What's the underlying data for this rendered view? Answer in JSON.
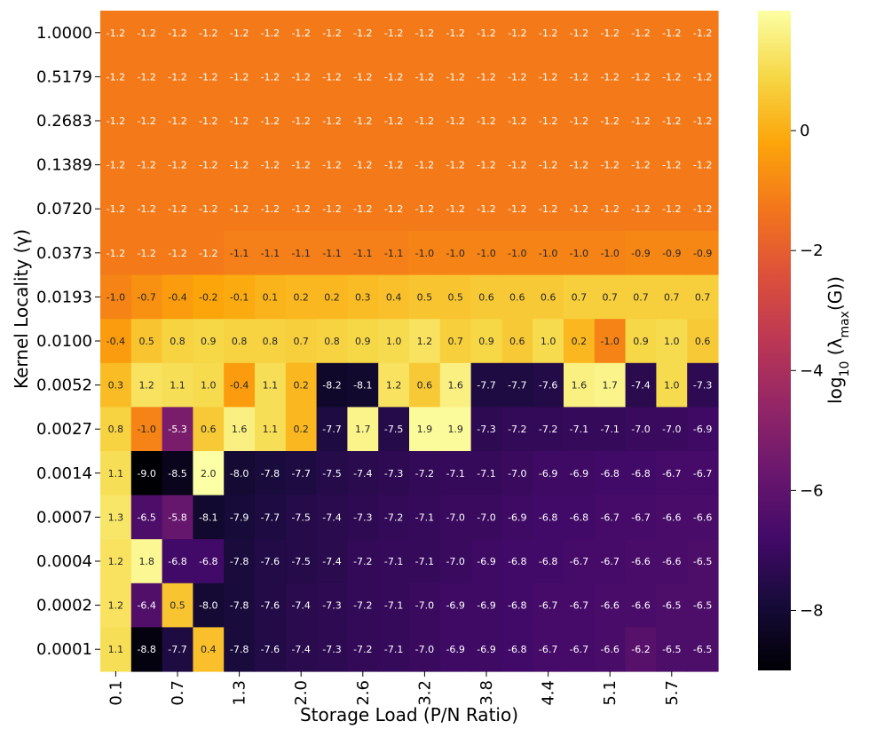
{
  "chart_data": {
    "type": "heatmap",
    "xlabel": "Storage Load (P/N Ratio)",
    "ylabel": "Kernel Locality (γ)",
    "colorbar_label": "log10 (λmax(G))",
    "colorbar_ticks": [
      0,
      -2,
      -4,
      -6,
      -8
    ],
    "colorbar_tick_labels": [
      "0",
      "−2",
      "−4",
      "−6",
      "−8"
    ],
    "color_range": [
      -9.0,
      2.0
    ],
    "colormap": "inferno",
    "x_tick_labels": [
      "0.1",
      "0.7",
      "1.3",
      "2.0",
      "2.6",
      "3.2",
      "3.8",
      "4.4",
      "5.1",
      "5.7"
    ],
    "x_tick_columns": [
      0,
      2,
      4,
      6,
      8,
      10,
      12,
      14,
      16,
      18
    ],
    "y_labels": [
      "1.0000",
      "0.5179",
      "0.2683",
      "0.1389",
      "0.0720",
      "0.0373",
      "0.0193",
      "0.0100",
      "0.0052",
      "0.0027",
      "0.0014",
      "0.0007",
      "0.0004",
      "0.0002",
      "0.0001"
    ],
    "values": [
      [
        -1.2,
        -1.2,
        -1.2,
        -1.2,
        -1.2,
        -1.2,
        -1.2,
        -1.2,
        -1.2,
        -1.2,
        -1.2,
        -1.2,
        -1.2,
        -1.2,
        -1.2,
        -1.2,
        -1.2,
        -1.2,
        -1.2,
        -1.2
      ],
      [
        -1.2,
        -1.2,
        -1.2,
        -1.2,
        -1.2,
        -1.2,
        -1.2,
        -1.2,
        -1.2,
        -1.2,
        -1.2,
        -1.2,
        -1.2,
        -1.2,
        -1.2,
        -1.2,
        -1.2,
        -1.2,
        -1.2,
        -1.2
      ],
      [
        -1.2,
        -1.2,
        -1.2,
        -1.2,
        -1.2,
        -1.2,
        -1.2,
        -1.2,
        -1.2,
        -1.2,
        -1.2,
        -1.2,
        -1.2,
        -1.2,
        -1.2,
        -1.2,
        -1.2,
        -1.2,
        -1.2,
        -1.2
      ],
      [
        -1.2,
        -1.2,
        -1.2,
        -1.2,
        -1.2,
        -1.2,
        -1.2,
        -1.2,
        -1.2,
        -1.2,
        -1.2,
        -1.2,
        -1.2,
        -1.2,
        -1.2,
        -1.2,
        -1.2,
        -1.2,
        -1.2,
        -1.2
      ],
      [
        -1.2,
        -1.2,
        -1.2,
        -1.2,
        -1.2,
        -1.2,
        -1.2,
        -1.2,
        -1.2,
        -1.2,
        -1.2,
        -1.2,
        -1.2,
        -1.2,
        -1.2,
        -1.2,
        -1.2,
        -1.2,
        -1.2,
        -1.2
      ],
      [
        -1.2,
        -1.2,
        -1.2,
        -1.2,
        -1.1,
        -1.1,
        -1.1,
        -1.1,
        -1.1,
        -1.1,
        -1.0,
        -1.0,
        -1.0,
        -1.0,
        -1.0,
        -1.0,
        -1.0,
        -0.9,
        -0.9,
        -0.9
      ],
      [
        -1.0,
        -0.7,
        -0.4,
        -0.2,
        -0.1,
        0.1,
        0.2,
        0.2,
        0.3,
        0.4,
        0.5,
        0.5,
        0.6,
        0.6,
        0.6,
        0.7,
        0.7,
        0.7,
        0.7,
        0.7
      ],
      [
        -0.4,
        0.5,
        0.8,
        0.9,
        0.8,
        0.8,
        0.7,
        0.8,
        0.9,
        1.0,
        1.2,
        0.7,
        0.9,
        0.6,
        1.0,
        0.2,
        -1.0,
        0.9,
        1.0,
        0.6
      ],
      [
        0.3,
        1.2,
        1.1,
        1.0,
        -0.4,
        1.1,
        0.2,
        -8.2,
        -8.1,
        1.2,
        0.6,
        1.6,
        -7.7,
        -7.7,
        -7.6,
        1.6,
        1.7,
        -7.4,
        1.0,
        -7.3
      ],
      [
        0.8,
        -1.0,
        -5.3,
        0.6,
        1.6,
        1.1,
        0.2,
        -7.7,
        1.7,
        -7.5,
        1.9,
        1.9,
        -7.3,
        -7.2,
        -7.2,
        -7.1,
        -7.1,
        -7.0,
        -7.0,
        -6.9
      ],
      [
        1.1,
        -9.0,
        -8.5,
        2.0,
        -8.0,
        -7.8,
        -7.7,
        -7.5,
        -7.4,
        -7.3,
        -7.2,
        -7.1,
        -7.1,
        -7.0,
        -6.9,
        -6.9,
        -6.8,
        -6.8,
        -6.7,
        -6.7
      ],
      [
        1.3,
        -6.5,
        -5.8,
        -8.1,
        -7.9,
        -7.7,
        -7.5,
        -7.4,
        -7.3,
        -7.2,
        -7.1,
        -7.0,
        -7.0,
        -6.9,
        -6.8,
        -6.8,
        -6.7,
        -6.7,
        -6.6,
        -6.6
      ],
      [
        1.2,
        1.8,
        -6.8,
        -6.8,
        -7.8,
        -7.6,
        -7.5,
        -7.4,
        -7.2,
        -7.1,
        -7.1,
        -7.0,
        -6.9,
        -6.8,
        -6.8,
        -6.7,
        -6.7,
        -6.6,
        -6.6,
        -6.5
      ],
      [
        1.2,
        -6.4,
        0.5,
        -8.0,
        -7.8,
        -7.6,
        -7.4,
        -7.3,
        -7.2,
        -7.1,
        -7.0,
        -6.9,
        -6.9,
        -6.8,
        -6.7,
        -6.7,
        -6.6,
        -6.6,
        -6.5,
        -6.5
      ],
      [
        1.1,
        -8.8,
        -7.7,
        0.4,
        -7.8,
        -7.6,
        -7.4,
        -7.3,
        -7.2,
        -7.1,
        -7.0,
        -6.9,
        -6.9,
        -6.8,
        -6.7,
        -6.7,
        -6.6,
        -6.2,
        -6.5,
        -6.5
      ]
    ]
  }
}
